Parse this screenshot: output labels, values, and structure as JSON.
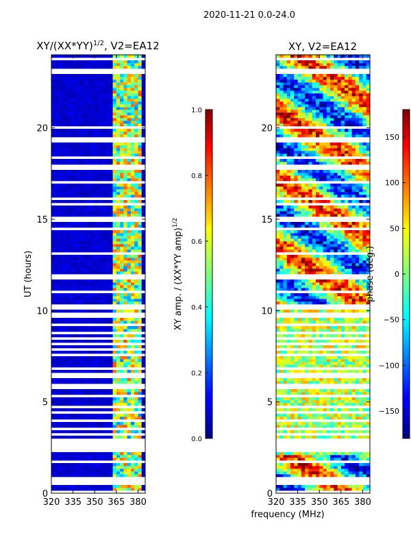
{
  "figure": {
    "suptitle": "2020-11-21 0.0-24.0",
    "xlabel_shared": "frequency (MHz)"
  },
  "chart_data": [
    {
      "type": "heatmap",
      "title_prefix": "XY/(XX*YY)",
      "title_sup": "1/2",
      "title_suffix": ", V2=EA12",
      "ylabel": "UT (hours)",
      "xticks": [
        320,
        335,
        350,
        365,
        380
      ],
      "yticks": [
        0,
        5,
        10,
        15,
        20
      ],
      "xlim": [
        320,
        385
      ],
      "ylim": [
        0,
        24
      ],
      "colormap": "jet",
      "description_note": "normalized XY amplitude vs frequency and UT; mostly low (~0.05) below 362 MHz, higher (0.3-0.8) in bands between 362 and 382 MHz",
      "colorbar": {
        "label_prefix": "XY amp. / (XX*YY amp)",
        "label_sup": "1/2",
        "ticks": [
          "0.0",
          "0.2",
          "0.4",
          "0.6",
          "0.8",
          "1.0"
        ],
        "range": [
          0,
          1
        ]
      }
    },
    {
      "type": "heatmap",
      "title": "XY, V2=EA12",
      "ylabel": "",
      "xticks": [
        320,
        335,
        350,
        365,
        380
      ],
      "yticks": [
        0,
        5,
        10,
        15,
        20
      ],
      "xlim": [
        320,
        385
      ],
      "ylim": [
        0,
        24
      ],
      "colormap": "jet",
      "description_note": "XY phase vs frequency and UT, values spanning -180 to 180 degrees",
      "colorbar": {
        "label": "phase (deg.)",
        "ticks": [
          "150",
          "100",
          "50",
          "0",
          "−50",
          "−100",
          "−150"
        ],
        "tick_values": [
          150,
          100,
          50,
          0,
          -50,
          -100,
          -150
        ],
        "range": [
          -180,
          180
        ]
      }
    }
  ]
}
